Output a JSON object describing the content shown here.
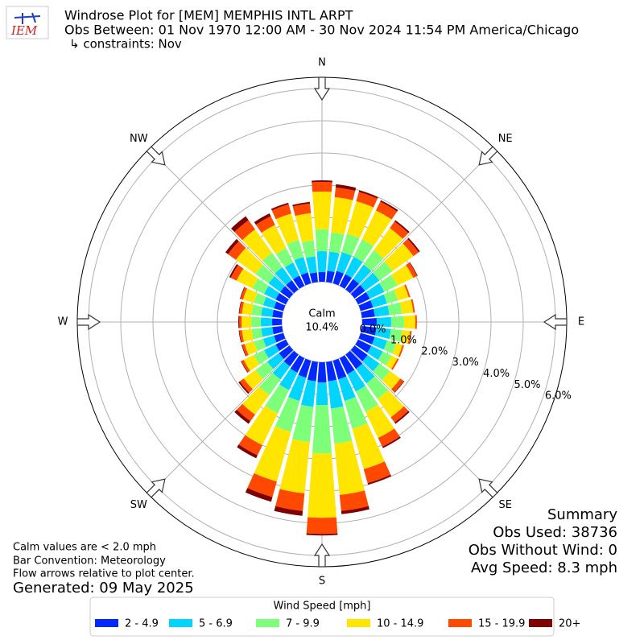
{
  "chart_data": {
    "type": "windrose",
    "title_lines": [
      "Windrose Plot for [MEM] MEMPHIS INTL ARPT",
      "Obs Between: 01 Nov 1970 12:00 AM - 30 Nov 2024 11:54 PM America/Chicago",
      "↳ constraints: Nov"
    ],
    "logo_text": "IEM",
    "directions": [
      "N",
      "NE",
      "E",
      "SE",
      "S",
      "SW",
      "W",
      "NW"
    ],
    "calm": {
      "label": "Calm",
      "value": "10.4%"
    },
    "ylim": [
      0,
      6.35
    ],
    "yticks": [
      {
        "value": 0,
        "label": "0.0%"
      },
      {
        "value": 1,
        "label": "1.0%"
      },
      {
        "value": 2,
        "label": "2.0%"
      },
      {
        "value": 3,
        "label": "3.0%"
      },
      {
        "value": 4,
        "label": "4.0%"
      },
      {
        "value": 5,
        "label": "5.0%"
      },
      {
        "value": 6,
        "label": "6.0%"
      }
    ],
    "grid": true,
    "legend_title": "Wind Speed [mph]",
    "legend": "bottom",
    "series": [
      {
        "name": "2 - 4.9",
        "color": "#0028ff",
        "values": [
          0.3,
          0.35,
          0.4,
          0.4,
          0.4,
          0.4,
          0.4,
          0.4,
          0.4,
          0.45,
          0.45,
          0.45,
          0.45,
          0.5,
          0.55,
          0.55,
          0.6,
          0.6,
          0.63,
          0.6,
          0.55,
          0.5,
          0.45,
          0.4,
          0.35,
          0.3,
          0.3,
          0.3,
          0.3,
          0.3,
          0.35,
          0.35,
          0.35,
          0.35,
          0.35,
          0.3
        ]
      },
      {
        "name": "5 - 6.9",
        "color": "#00d4ff",
        "values": [
          0.65,
          0.6,
          0.6,
          0.6,
          0.55,
          0.55,
          0.5,
          0.45,
          0.45,
          0.45,
          0.45,
          0.4,
          0.4,
          0.45,
          0.55,
          0.6,
          0.7,
          0.85,
          0.7,
          0.8,
          0.75,
          0.6,
          0.5,
          0.45,
          0.4,
          0.35,
          0.35,
          0.35,
          0.35,
          0.35,
          0.4,
          0.45,
          0.5,
          0.45,
          0.5,
          0.5
        ]
      },
      {
        "name": "7 - 9.9",
        "color": "#7dff7a",
        "values": [
          0.68,
          0.6,
          0.6,
          0.6,
          0.55,
          0.5,
          0.45,
          0.35,
          0.4,
          0.4,
          0.35,
          0.3,
          0.3,
          0.4,
          0.6,
          0.7,
          0.9,
          1.1,
          1.5,
          1.1,
          1.0,
          0.8,
          0.6,
          0.45,
          0.35,
          0.3,
          0.3,
          0.3,
          0.3,
          0.3,
          0.4,
          0.5,
          0.55,
          0.5,
          0.55,
          0.5
        ]
      },
      {
        "name": "10 - 14.9",
        "color": "#ffe500",
        "values": [
          1.17,
          1.1,
          1.05,
          1.0,
          0.85,
          0.8,
          0.55,
          0.35,
          0.35,
          0.35,
          0.25,
          0.2,
          0.2,
          0.4,
          0.7,
          0.9,
          1.3,
          1.6,
          2.0,
          1.6,
          1.6,
          1.1,
          0.75,
          0.45,
          0.35,
          0.3,
          0.3,
          0.3,
          0.3,
          0.35,
          0.55,
          0.75,
          0.9,
          0.8,
          0.85,
          0.85
        ]
      },
      {
        "name": "15 - 19.9",
        "color": "#ff4800",
        "values": [
          0.3,
          0.3,
          0.3,
          0.3,
          0.25,
          0.2,
          0.13,
          0.05,
          0.05,
          0.05,
          0.05,
          0.05,
          0.05,
          0.13,
          0.2,
          0.3,
          0.45,
          0.5,
          0.5,
          0.55,
          0.5,
          0.35,
          0.25,
          0.15,
          0.08,
          0.08,
          0.08,
          0.07,
          0.08,
          0.08,
          0.2,
          0.3,
          0.35,
          0.3,
          0.3,
          0.3
        ]
      },
      {
        "name": "20+",
        "color": "#800000",
        "values": [
          0.05,
          0.1,
          0.05,
          0.05,
          0.05,
          0.05,
          0.02,
          0,
          0,
          0,
          0,
          0,
          0,
          0.02,
          0.05,
          0.05,
          0.05,
          0.1,
          0.05,
          0.15,
          0.15,
          0.1,
          0.1,
          0.05,
          0.02,
          0.02,
          0.02,
          0.03,
          0.02,
          0.02,
          0.05,
          0.1,
          0.15,
          0.1,
          0.05,
          0.05
        ]
      }
    ],
    "summary": [
      "Summary",
      "Obs Used: 38736",
      "Obs Without Wind: 0",
      "Avg Speed: 8.3 mph"
    ],
    "notes": [
      "Calm values are < 2.0 mph",
      "Bar Convention: Meteorology",
      "Flow arrows relative to plot center."
    ],
    "generated": "Generated: 09 May 2025"
  }
}
